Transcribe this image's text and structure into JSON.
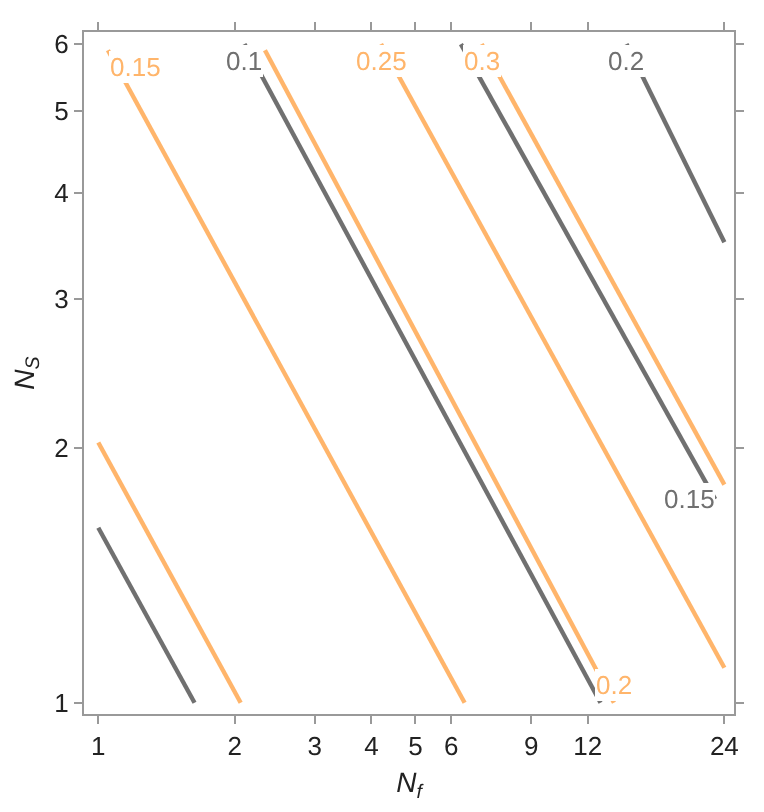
{
  "chart_data": {
    "type": "line",
    "xlabel": "N$_{f}$",
    "ylabel": "N$_{S}$",
    "log": "xy",
    "marker": "none",
    "line_style": "solid",
    "xlim": [
      0.93,
      25.2
    ],
    "ylim": [
      0.97,
      6.2
    ],
    "xticks": [
      1,
      2,
      3,
      4,
      5,
      6,
      9,
      12,
      24
    ],
    "yticks": [
      1,
      2,
      3,
      4,
      5,
      6
    ],
    "series": [
      {
        "color": "#707070",
        "x": [
          1,
          1.63
        ],
        "values": [
          1.61,
          1
        ]
      },
      {
        "color": "#ffb56b",
        "x": [
          1,
          2.06
        ],
        "values": [
          2.03,
          1
        ]
      },
      {
        "name": "0.15",
        "color": "#ffb56b",
        "x": [
          1.05,
          6.42
        ],
        "values": [
          5.9,
          1
        ]
      },
      {
        "name": "0.1",
        "color": "#707070",
        "x": [
          2.1,
          12.8
        ],
        "values": [
          6.0,
          1
        ]
      },
      {
        "name": "0.2",
        "color": "#ffb56b",
        "x": [
          13.7,
          2.33
        ],
        "values": [
          1,
          5.9
        ]
      },
      {
        "name": "0.25",
        "color": "#ffb56b",
        "x": [
          4.2,
          24
        ],
        "values": [
          6.0,
          1.1
        ]
      },
      {
        "name": "0.15",
        "color": "#707070",
        "x": [
          22.9,
          6.3
        ],
        "values": [
          1.74,
          6.0
        ]
      },
      {
        "name": "0.3",
        "color": "#ffb56b",
        "x": [
          7.0,
          24
        ],
        "values": [
          6.0,
          1.81
        ]
      },
      {
        "name": "0.2",
        "color": "#707070",
        "x": [
          14.6,
          24
        ],
        "values": [
          6.0,
          3.5
        ]
      }
    ]
  }
}
